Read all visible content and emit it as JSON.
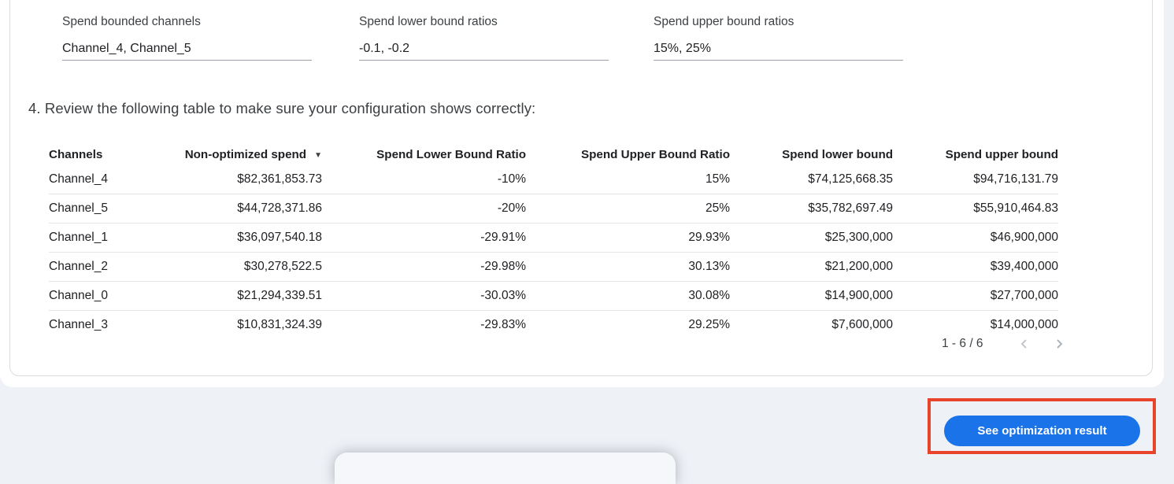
{
  "fields": [
    {
      "label": "Spend bounded channels",
      "value": "Channel_4, Channel_5"
    },
    {
      "label": "Spend lower bound ratios",
      "value": "-0.1, -0.2"
    },
    {
      "label": "Spend upper bound ratios",
      "value": "15%, 25%"
    }
  ],
  "instruction": "4. Review the following table to make sure your configuration shows correctly:",
  "table": {
    "columns": [
      "Channels",
      "Non-optimized spend",
      "Spend Lower Bound Ratio",
      "Spend Upper Bound Ratio",
      "Spend lower bound",
      "Spend upper bound"
    ],
    "sorted_column_index": 1,
    "sort_icon": "▼",
    "rows": [
      [
        "Channel_4",
        "$82,361,853.73",
        "-10%",
        "15%",
        "$74,125,668.35",
        "$94,716,131.79"
      ],
      [
        "Channel_5",
        "$44,728,371.86",
        "-20%",
        "25%",
        "$35,782,697.49",
        "$55,910,464.83"
      ],
      [
        "Channel_1",
        "$36,097,540.18",
        "-29.91%",
        "29.93%",
        "$25,300,000",
        "$46,900,000"
      ],
      [
        "Channel_2",
        "$30,278,522.5",
        "-29.98%",
        "30.13%",
        "$21,200,000",
        "$39,400,000"
      ],
      [
        "Channel_0",
        "$21,294,339.51",
        "-30.03%",
        "30.08%",
        "$14,900,000",
        "$27,700,000"
      ],
      [
        "Channel_3",
        "$10,831,324.39",
        "-29.83%",
        "29.25%",
        "$7,600,000",
        "$14,000,000"
      ]
    ],
    "pagination": {
      "range_label": "1 - 6 / 6",
      "prev_icon": "chevron-left",
      "next_icon": "chevron-right"
    }
  },
  "action": {
    "button_label": "See optimization result"
  },
  "colors": {
    "button_blue": "#1a73e8",
    "annotation_red": "#e8432b",
    "page_background": "#eef1f6",
    "row_divider": "#e3e5e8"
  }
}
